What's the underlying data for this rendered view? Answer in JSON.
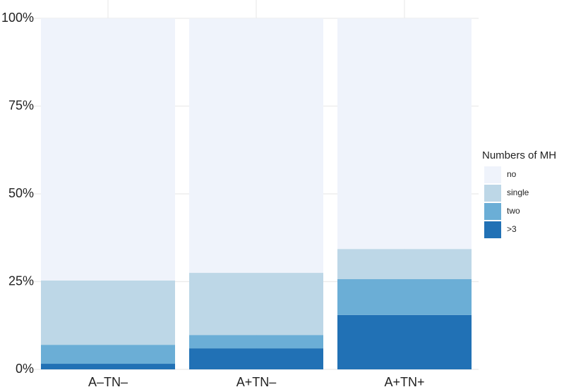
{
  "chart_data": {
    "type": "stacked_bar",
    "categories": [
      "A–TN–",
      "A+TN–",
      "A+TN+"
    ],
    "series": [
      {
        "name": "no",
        "color": "#eff3fb",
        "values": [
          74.7,
          72.5,
          65.7
        ]
      },
      {
        "name": "single",
        "color": "#bdd7e7",
        "values": [
          18.3,
          17.7,
          8.6
        ]
      },
      {
        "name": "two",
        "color": "#6baed6",
        "values": [
          5.4,
          3.8,
          10.2
        ]
      },
      {
        "name": ">3",
        "color": "#2171b5",
        "values": [
          1.6,
          6.0,
          15.5
        ]
      }
    ],
    "legend_title": "Numbers of MH",
    "legend_position": "right",
    "ylim": [
      0,
      100
    ],
    "yticks": [
      {
        "value": 0,
        "label": "0%"
      },
      {
        "value": 25,
        "label": "25%"
      },
      {
        "value": 50,
        "label": "50%"
      },
      {
        "value": 75,
        "label": "75%"
      },
      {
        "value": 100,
        "label": "100%"
      }
    ],
    "grid": true
  }
}
